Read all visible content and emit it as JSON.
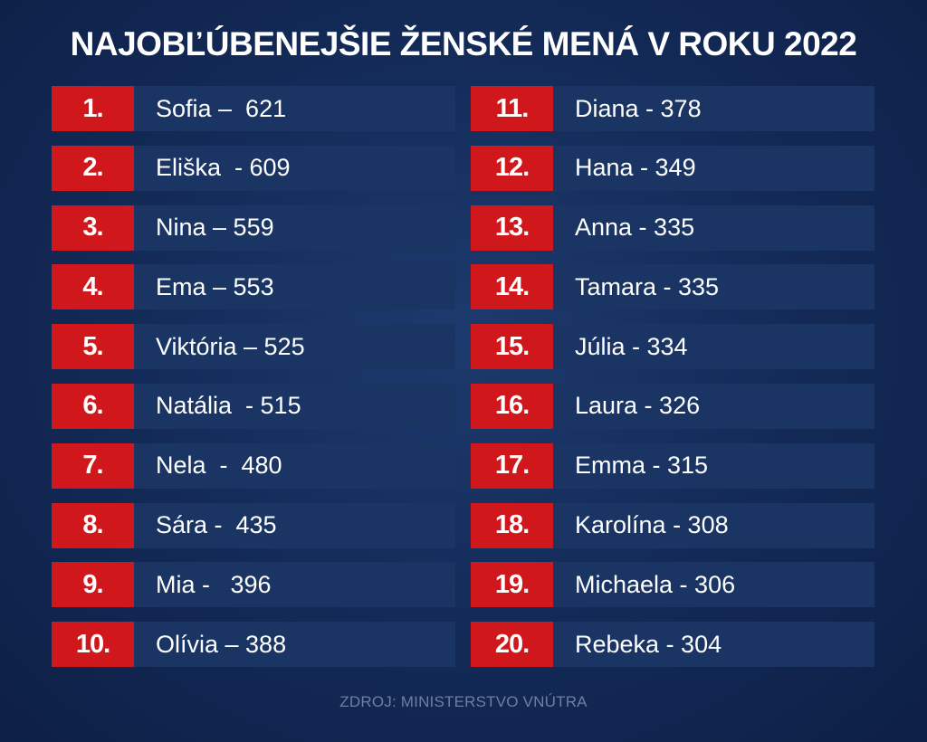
{
  "title": "NAJOBĽÚBENEJŠIE ŽENSKÉ MENÁ V ROKU 2022",
  "source": "ZDROJ: MINISTERSTVO VNÚTRA",
  "colors": {
    "rank_background": "#d0181c",
    "entry_background": "#1a3463",
    "page_background": "#142c5a"
  },
  "left_column": [
    {
      "rank": "1.",
      "text": "Sofia –  621"
    },
    {
      "rank": "2.",
      "text": "Eliška  - 609"
    },
    {
      "rank": "3.",
      "text": "Nina – 559"
    },
    {
      "rank": "4.",
      "text": "Ema – 553"
    },
    {
      "rank": "5.",
      "text": "Viktória – 525"
    },
    {
      "rank": "6.",
      "text": "Natália  - 515"
    },
    {
      "rank": "7.",
      "text": "Nela  -  480"
    },
    {
      "rank": "8.",
      "text": "Sára -  435"
    },
    {
      "rank": "9.",
      "text": "Mia -   396"
    },
    {
      "rank": "10.",
      "text": "Olívia – 388"
    }
  ],
  "right_column": [
    {
      "rank": "11.",
      "text": "Diana - 378"
    },
    {
      "rank": "12.",
      "text": "Hana - 349"
    },
    {
      "rank": "13.",
      "text": "Anna - 335"
    },
    {
      "rank": "14.",
      "text": "Tamara - 335"
    },
    {
      "rank": "15.",
      "text": "Júlia - 334"
    },
    {
      "rank": "16.",
      "text": "Laura - 326"
    },
    {
      "rank": "17.",
      "text": "Emma - 315"
    },
    {
      "rank": "18.",
      "text": "Karolína - 308"
    },
    {
      "rank": "19.",
      "text": "Michaela - 306"
    },
    {
      "rank": "20.",
      "text": "Rebeka - 304"
    }
  ]
}
